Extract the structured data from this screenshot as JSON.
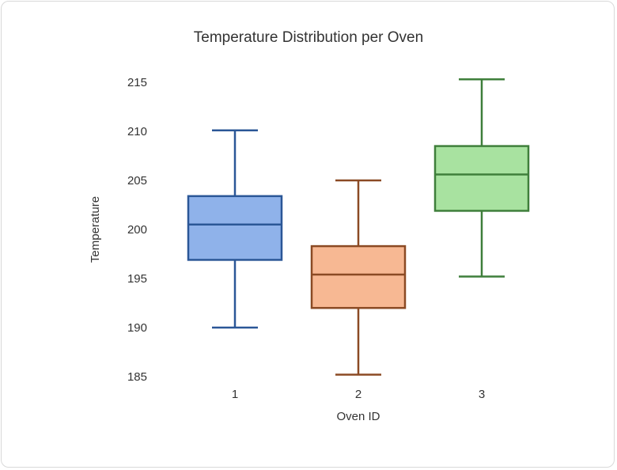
{
  "chart_data": {
    "type": "boxplot",
    "title": "Temperature Distribution per Oven",
    "xlabel": "Oven ID",
    "ylabel": "Temperature",
    "ylim": [
      185,
      215
    ],
    "yticks": [
      185,
      190,
      195,
      200,
      205,
      210,
      215
    ],
    "grid": false,
    "categories": [
      "1",
      "2",
      "3"
    ],
    "series": [
      {
        "name": "1",
        "whisker_low": 190.0,
        "q1": 196.9,
        "median": 200.5,
        "q3": 203.4,
        "whisker_high": 210.1,
        "fill": "#8fb2ea",
        "stroke": "#2b5797"
      },
      {
        "name": "2",
        "whisker_low": 185.2,
        "q1": 192.0,
        "median": 195.4,
        "q3": 198.3,
        "whisker_high": 205.0,
        "fill": "#f7b893",
        "stroke": "#8b4a24"
      },
      {
        "name": "3",
        "whisker_low": 195.2,
        "q1": 201.9,
        "median": 205.6,
        "q3": 208.5,
        "whisker_high": 215.3,
        "fill": "#a8e2a0",
        "stroke": "#3f7f3b"
      }
    ]
  }
}
